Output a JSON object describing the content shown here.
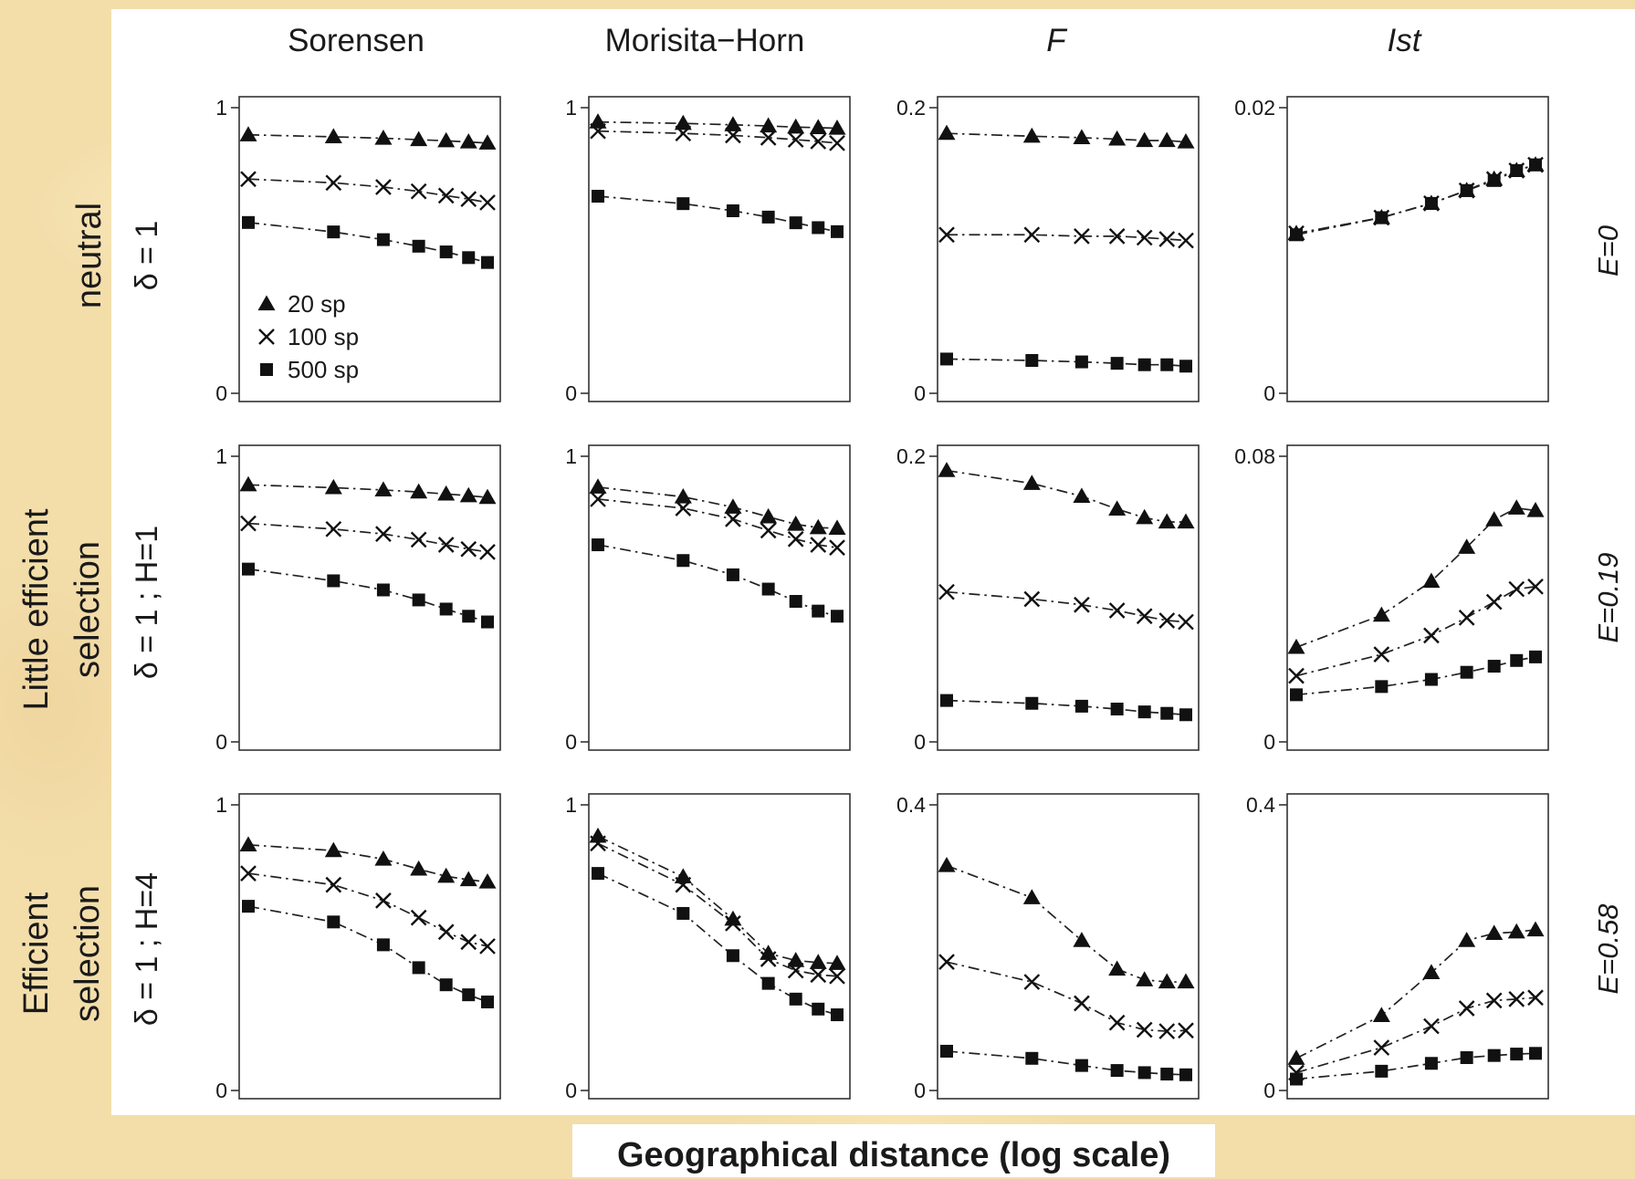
{
  "chart_data": {
    "type": "line",
    "x_axis_title": "Geographical distance (log scale)",
    "x_scale": "log",
    "x_tick_labels_shown": false,
    "x_points": [
      1,
      2,
      3,
      4,
      5,
      6,
      7
    ],
    "column_titles": [
      "Sorensen",
      "Morisita−Horn",
      "F",
      "Ist"
    ],
    "row_labels": [
      {
        "label": "neutral",
        "param": "δ = 1",
        "e_label": "E=0"
      },
      {
        "label": "Little efficient selection",
        "label_lines": [
          "Little efficient",
          "selection"
        ],
        "param": "δ = 1 ; H=1",
        "e_label": "E=0.19"
      },
      {
        "label": "Efficient selection",
        "label_lines": [
          "Efficient",
          "selection"
        ],
        "param": "δ = 1 ; H=4",
        "e_label": "E=0.58"
      }
    ],
    "legend": {
      "placement": "bottom-left of top-left panel",
      "entries": [
        {
          "name": "20 sp",
          "marker": "triangle",
          "line": "dash-dot"
        },
        {
          "name": "100 sp",
          "marker": "cross",
          "line": "dash-dot"
        },
        {
          "name": "500 sp",
          "marker": "square",
          "line": "dash-dot"
        }
      ]
    },
    "panels": [
      {
        "row": 0,
        "col": 0,
        "ylim": [
          0,
          1
        ],
        "yticks": [
          "0",
          "1"
        ],
        "series": [
          {
            "name": "20 sp",
            "values": [
              0.905,
              0.898,
              0.893,
              0.888,
              0.884,
              0.88,
              0.876
            ]
          },
          {
            "name": "100 sp",
            "values": [
              0.75,
              0.737,
              0.722,
              0.707,
              0.692,
              0.68,
              0.668
            ]
          },
          {
            "name": "500 sp",
            "values": [
              0.598,
              0.565,
              0.538,
              0.515,
              0.495,
              0.475,
              0.458
            ]
          }
        ]
      },
      {
        "row": 0,
        "col": 1,
        "ylim": [
          0,
          1
        ],
        "yticks": [
          "0",
          "1"
        ],
        "series": [
          {
            "name": "20 sp",
            "values": [
              0.95,
              0.945,
              0.94,
              0.936,
              0.932,
              0.93,
              0.928
            ]
          },
          {
            "name": "100 sp",
            "values": [
              0.918,
              0.91,
              0.903,
              0.895,
              0.888,
              0.882,
              0.876
            ]
          },
          {
            "name": "500 sp",
            "values": [
              0.69,
              0.664,
              0.639,
              0.617,
              0.597,
              0.58,
              0.566
            ]
          }
        ]
      },
      {
        "row": 0,
        "col": 2,
        "ylim": [
          0,
          0.2
        ],
        "yticks": [
          "0",
          "0.2"
        ],
        "series": [
          {
            "name": "20 sp",
            "values": [
              0.182,
              0.18,
              0.179,
              0.178,
              0.177,
              0.177,
              0.176
            ]
          },
          {
            "name": "100 sp",
            "values": [
              0.111,
              0.111,
              0.11,
              0.11,
              0.109,
              0.108,
              0.107
            ]
          },
          {
            "name": "500 sp",
            "values": [
              0.024,
              0.023,
              0.022,
              0.021,
              0.02,
              0.02,
              0.019
            ]
          }
        ]
      },
      {
        "row": 0,
        "col": 3,
        "ylim": [
          0,
          0.02
        ],
        "yticks": [
          "0",
          "0.02"
        ],
        "series": [
          {
            "name": "20 sp",
            "values": [
              0.0112,
              0.0123,
              0.0133,
              0.0142,
              0.015,
              0.0156,
              0.016
            ]
          },
          {
            "name": "100 sp",
            "values": [
              0.0112,
              0.0123,
              0.0133,
              0.0142,
              0.015,
              0.0156,
              0.016
            ]
          },
          {
            "name": "500 sp",
            "values": [
              0.0111,
              0.0123,
              0.0133,
              0.0142,
              0.0149,
              0.0156,
              0.016
            ]
          }
        ]
      },
      {
        "row": 1,
        "col": 0,
        "ylim": [
          0,
          1
        ],
        "yticks": [
          "0",
          "1"
        ],
        "series": [
          {
            "name": "20 sp",
            "values": [
              0.9,
              0.89,
              0.882,
              0.875,
              0.868,
              0.862,
              0.856
            ]
          },
          {
            "name": "100 sp",
            "values": [
              0.765,
              0.745,
              0.728,
              0.708,
              0.69,
              0.675,
              0.665
            ]
          },
          {
            "name": "500 sp",
            "values": [
              0.605,
              0.564,
              0.532,
              0.497,
              0.465,
              0.44,
              0.42
            ]
          }
        ]
      },
      {
        "row": 1,
        "col": 1,
        "ylim": [
          0,
          1
        ],
        "yticks": [
          "0",
          "1"
        ],
        "series": [
          {
            "name": "20 sp",
            "values": [
              0.892,
              0.858,
              0.822,
              0.788,
              0.762,
              0.75,
              0.748
            ]
          },
          {
            "name": "100 sp",
            "values": [
              0.85,
              0.818,
              0.78,
              0.74,
              0.71,
              0.69,
              0.68
            ]
          },
          {
            "name": "500 sp",
            "values": [
              0.69,
              0.635,
              0.585,
              0.535,
              0.492,
              0.458,
              0.44
            ]
          }
        ]
      },
      {
        "row": 1,
        "col": 2,
        "ylim": [
          0,
          0.2
        ],
        "yticks": [
          "0",
          "0.2"
        ],
        "series": [
          {
            "name": "20 sp",
            "values": [
              0.19,
              0.181,
              0.172,
              0.163,
              0.157,
              0.154,
              0.154
            ]
          },
          {
            "name": "100 sp",
            "values": [
              0.105,
              0.1,
              0.096,
              0.092,
              0.088,
              0.085,
              0.084
            ]
          },
          {
            "name": "500 sp",
            "values": [
              0.029,
              0.027,
              0.025,
              0.023,
              0.021,
              0.02,
              0.019
            ]
          }
        ]
      },
      {
        "row": 1,
        "col": 3,
        "ylim": [
          0,
          0.08
        ],
        "yticks": [
          "0",
          "0.08"
        ],
        "series": [
          {
            "name": "20 sp",
            "values": [
              0.0265,
              0.0355,
              0.045,
              0.0545,
              0.0622,
              0.0655,
              0.0648
            ]
          },
          {
            "name": "100 sp",
            "values": [
              0.0185,
              0.0245,
              0.0298,
              0.0348,
              0.0392,
              0.0428,
              0.0435
            ]
          },
          {
            "name": "500 sp",
            "values": [
              0.0132,
              0.0155,
              0.0175,
              0.0195,
              0.0212,
              0.0228,
              0.0238
            ]
          }
        ]
      },
      {
        "row": 2,
        "col": 0,
        "ylim": [
          0,
          1
        ],
        "yticks": [
          "0",
          "1"
        ],
        "series": [
          {
            "name": "20 sp",
            "values": [
              0.86,
              0.84,
              0.81,
              0.775,
              0.75,
              0.738,
              0.73
            ]
          },
          {
            "name": "100 sp",
            "values": [
              0.76,
              0.72,
              0.665,
              0.605,
              0.555,
              0.52,
              0.505
            ]
          },
          {
            "name": "500 sp",
            "values": [
              0.645,
              0.59,
              0.51,
              0.43,
              0.37,
              0.335,
              0.31
            ]
          }
        ]
      },
      {
        "row": 2,
        "col": 1,
        "ylim": [
          0,
          1
        ],
        "yticks": [
          "0",
          "1"
        ],
        "series": [
          {
            "name": "20 sp",
            "values": [
              0.89,
              0.748,
              0.6,
              0.48,
              0.455,
              0.448,
              0.445
            ]
          },
          {
            "name": "100 sp",
            "values": [
              0.865,
              0.72,
              0.585,
              0.46,
              0.42,
              0.405,
              0.4
            ]
          },
          {
            "name": "500 sp",
            "values": [
              0.76,
              0.62,
              0.472,
              0.375,
              0.32,
              0.285,
              0.265
            ]
          }
        ]
      },
      {
        "row": 2,
        "col": 2,
        "ylim": [
          0,
          0.4
        ],
        "yticks": [
          "0",
          "0.4"
        ],
        "series": [
          {
            "name": "20 sp",
            "values": [
              0.315,
              0.27,
              0.21,
              0.17,
              0.155,
              0.152,
              0.152
            ]
          },
          {
            "name": "100 sp",
            "values": [
              0.18,
              0.152,
              0.122,
              0.095,
              0.085,
              0.083,
              0.084
            ]
          },
          {
            "name": "500 sp",
            "values": [
              0.055,
              0.045,
              0.035,
              0.028,
              0.025,
              0.023,
              0.022
            ]
          }
        ]
      },
      {
        "row": 2,
        "col": 3,
        "ylim": [
          0,
          0.4
        ],
        "yticks": [
          "0",
          "0.4"
        ],
        "series": [
          {
            "name": "20 sp",
            "values": [
              0.045,
              0.105,
              0.165,
              0.21,
              0.22,
              0.222,
              0.225
            ]
          },
          {
            "name": "100 sp",
            "values": [
              0.025,
              0.06,
              0.09,
              0.115,
              0.126,
              0.128,
              0.13
            ]
          },
          {
            "name": "500 sp",
            "values": [
              0.016,
              0.027,
              0.038,
              0.046,
              0.049,
              0.051,
              0.052
            ]
          }
        ]
      }
    ]
  }
}
